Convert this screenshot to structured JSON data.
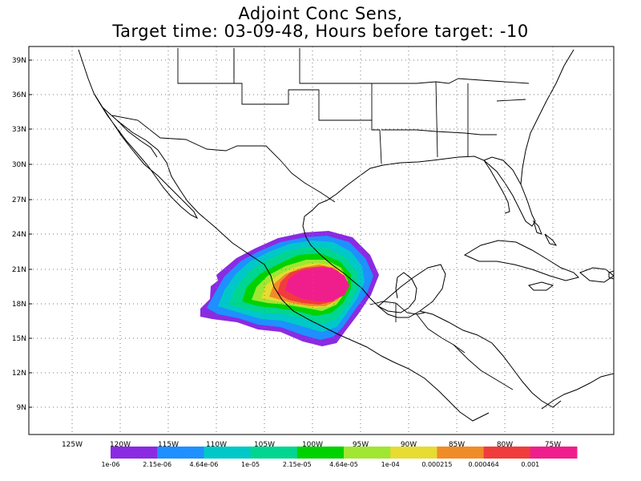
{
  "title": {
    "line1": "Adjoint Conc Sens,",
    "line2": "Target time: 03-09-48, Hours before target: -10"
  },
  "map": {
    "lat_labels": [
      "39N",
      "36N",
      "33N",
      "30N",
      "27N",
      "24N",
      "21N",
      "18N",
      "15N",
      "12N",
      "9N"
    ],
    "lon_labels": [
      "125W",
      "120W",
      "115W",
      "110W",
      "105W",
      "100W",
      "95W",
      "90W",
      "85W",
      "80W",
      "75W"
    ]
  },
  "colorbar": {
    "colors": [
      "#8a2be2",
      "#1e90ff",
      "#00c8c8",
      "#00d68f",
      "#00d200",
      "#a0e632",
      "#e6dc32",
      "#f08c28",
      "#f03c3c",
      "#f01e8c"
    ],
    "labels": [
      "1e-06",
      "2.15e-06",
      "4.64e-06",
      "1e-05",
      "2.15e-05",
      "4.64e-05",
      "1e-04",
      "0.000215",
      "0.000464",
      "0.001"
    ]
  }
}
